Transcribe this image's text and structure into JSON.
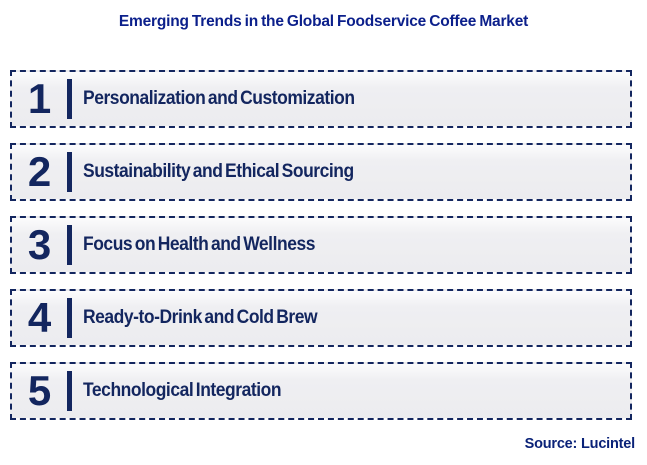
{
  "title": "Emerging Trends in the Global Foodservice Coffee Market",
  "source_label": "Source: Lucintel",
  "colors": {
    "title_color": "#0B1F8B",
    "line_color": "#13265F",
    "box_border": "#13265F",
    "source_color": "#0A2278",
    "box_fill_top": "#FCFCFD",
    "box_fill_bottom": "#ECECEF"
  },
  "trends": [
    {
      "number": "1",
      "label": "Personalization and Customization"
    },
    {
      "number": "2",
      "label": "Sustainability and Ethical Sourcing"
    },
    {
      "number": "3",
      "label": "Focus on Health and Wellness"
    },
    {
      "number": "4",
      "label": "Ready-to-Drink and Cold Brew"
    },
    {
      "number": "5",
      "label": "Technological Integration"
    }
  ]
}
